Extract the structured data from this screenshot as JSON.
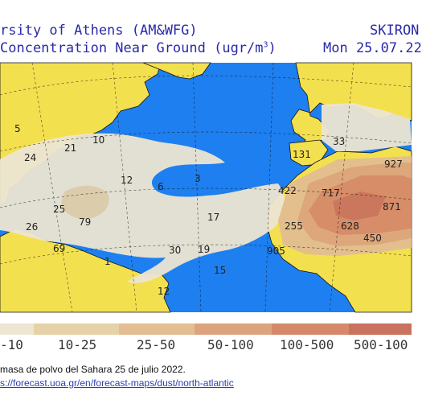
{
  "header": {
    "line1_left": "rsity of Athens (AM&WFG)",
    "line1_right": "SKIRON",
    "line2_left": "Concentration Near Ground (ugr/m",
    "line2_left_sup": "3",
    "line2_left_end": ")",
    "line2_right": "Mon 25.07.22"
  },
  "colors": {
    "ocean": "#1e7ff0",
    "land": "#f3e04f",
    "dust_0_10": "#ede6d2",
    "dust_10_25": "#e6d2a8",
    "dust_25_50": "#e3be92",
    "dust_50_100": "#dca47e",
    "dust_100_500": "#d5896a",
    "dust_500_1000": "#c9725e"
  },
  "legend": {
    "bins": [
      "-10",
      "10-25",
      "25-50",
      "50-100",
      "100-500",
      "500-100"
    ]
  },
  "map_values": [
    "5",
    "21",
    "10",
    "24",
    "12",
    "6",
    "3",
    "131",
    "33",
    "927",
    "25",
    "79",
    "26",
    "17",
    "422",
    "717",
    "871",
    "1",
    "69",
    "30",
    "19",
    "255",
    "628",
    "450",
    "905",
    "12",
    "15"
  ],
  "caption": {
    "text": "masa de polvo del Sahara 25 de julio 2022.",
    "link": "s://forecast.uoa.gr/en/forecast-maps/dust/north-atlantic"
  }
}
